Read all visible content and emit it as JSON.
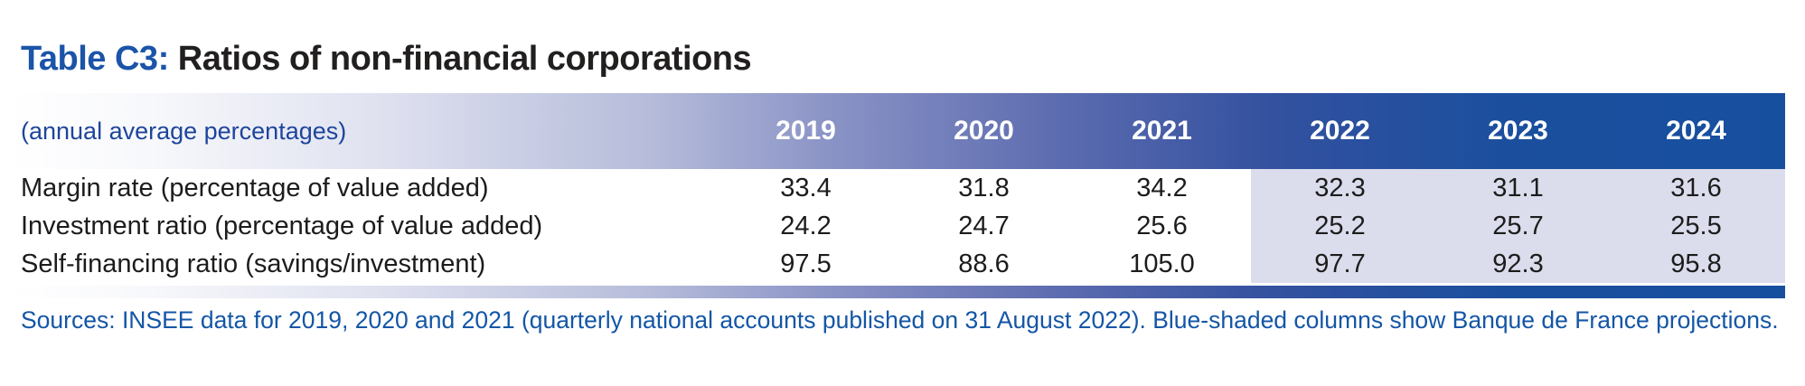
{
  "title": {
    "label": "Table C3:",
    "rest": " Ratios of non-financial corporations"
  },
  "table": {
    "unit_note": "(annual average percentages)",
    "years": [
      "2019",
      "2020",
      "2021",
      "2022",
      "2023",
      "2024"
    ],
    "projection_years": [
      "2022",
      "2023",
      "2024"
    ],
    "rows": [
      {
        "label": "Margin rate (percentage of value added)",
        "values": [
          "33.4",
          "31.8",
          "34.2",
          "32.3",
          "31.1",
          "31.6"
        ]
      },
      {
        "label": "Investment ratio (percentage of value added)",
        "values": [
          "24.2",
          "24.7",
          "25.6",
          "25.2",
          "25.7",
          "25.5"
        ]
      },
      {
        "label": "Self-financing ratio (savings/investment)",
        "values": [
          "97.5",
          "88.6",
          "105.0",
          "97.7",
          "92.3",
          "95.8"
        ]
      }
    ]
  },
  "footer": {
    "sources": "Sources: INSEE data for 2019, 2020 and 2021 (quarterly national accounts published on 31 August 2022). Blue-shaded columns show Banque de France projections."
  },
  "colors": {
    "accent_blue": "#1b54a8",
    "header_navy_end": "#174f9f",
    "projection_shade": "#dbdcec",
    "source_text": "#1456a6"
  }
}
